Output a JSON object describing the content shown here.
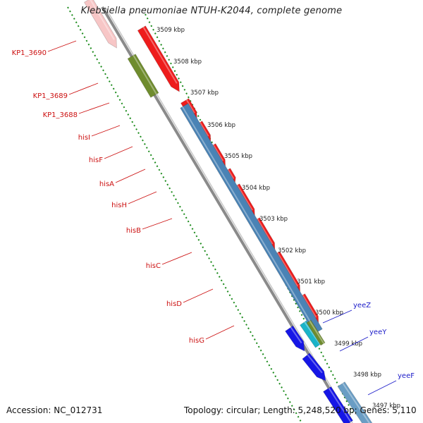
{
  "title": "Klebsiella pneumoniae NTUH-K2044, complete genome",
  "footer": {
    "accession": "Accession: NC_012731",
    "topology": "Topology: circular;",
    "length": "Length: 5,248,520 bp;",
    "genes": "Genes: 5,110"
  },
  "colors": {
    "forward_gene": "#ee1c1c",
    "reverse_gene": "#4a83b5",
    "rna_gene": "#6f8c2e",
    "blue_gene": "#1616e6",
    "cyan_gene": "#1ab4c8",
    "light_blue_gene": "#6a9dc4",
    "pink_gene": "#f7c6c6",
    "backbone": "#8a8a8a",
    "ticks": "#1a8a1a",
    "red_label": "#cc1111",
    "blue_label": "#1a1ac8"
  },
  "scale_labels": [
    "3509 kbp",
    "3508 kbp",
    "3507 kbp",
    "3506 kbp",
    "3505 kbp",
    "3504 kbp",
    "3503 kbp",
    "3502 kbp",
    "3501 kbp",
    "3500 kbp",
    "3499 kbp",
    "3498 kbp",
    "3497 kbp"
  ],
  "gene_labels_left": [
    {
      "name": "KP1_3690"
    },
    {
      "name": "KP1_3689"
    },
    {
      "name": "KP1_3688"
    },
    {
      "name": "hisI"
    },
    {
      "name": "hisF"
    },
    {
      "name": "hisA"
    },
    {
      "name": "hisH"
    },
    {
      "name": "hisB"
    },
    {
      "name": "hisC"
    },
    {
      "name": "hisD"
    },
    {
      "name": "hisG"
    }
  ],
  "gene_labels_right": [
    {
      "name": "yeeZ"
    },
    {
      "name": "yeeY"
    },
    {
      "name": "yeeF"
    }
  ]
}
